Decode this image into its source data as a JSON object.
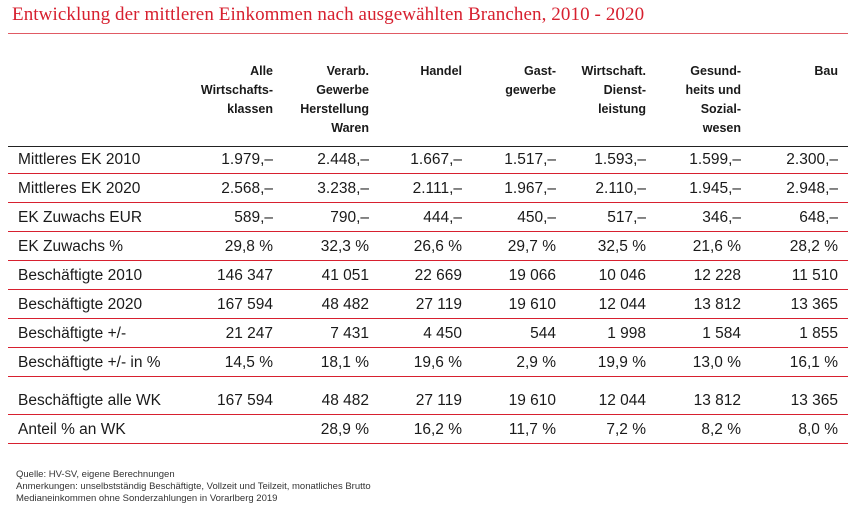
{
  "title": "Entwicklung der mittleren Einkommen nach ausgewählten Branchen, 2010 - 2020",
  "columns": [
    [
      "Alle",
      "Wirtschafts-",
      "klassen"
    ],
    [
      "Verarb.",
      "Gewerbe",
      "Herstellung",
      "Waren"
    ],
    [
      "Handel"
    ],
    [
      "Gast-",
      "gewerbe"
    ],
    [
      "Wirtschaft.",
      "Dienst-",
      "leistung"
    ],
    [
      "Gesund-",
      "heits und",
      "Sozial-",
      "wesen"
    ],
    [
      "Bau"
    ]
  ],
  "rows": [
    {
      "label": "Mittleres EK 2010",
      "values": [
        "1.979,–",
        "2.448,–",
        "1.667,–",
        "1.517,–",
        "1.593,–",
        "1.599,–",
        "2.300,–"
      ]
    },
    {
      "label": "Mittleres EK 2020",
      "values": [
        "2.568,–",
        "3.238,–",
        "2.111,–",
        "1.967,–",
        "2.110,–",
        "1.945,–",
        "2.948,–"
      ]
    },
    {
      "label": "EK Zuwachs EUR",
      "values": [
        "589,–",
        "790,–",
        "444,–",
        "450,–",
        "517,–",
        "346,–",
        "648,–"
      ]
    },
    {
      "label": "EK Zuwachs %",
      "values": [
        "29,8 %",
        "32,3 %",
        "26,6 %",
        "29,7 %",
        "32,5 %",
        "21,6 %",
        "28,2 %"
      ]
    },
    {
      "label": "Beschäftigte 2010",
      "values": [
        "146 347",
        "41 051",
        "22 669",
        "19 066",
        "10 046",
        "12 228",
        "11 510"
      ]
    },
    {
      "label": "Beschäftigte 2020",
      "values": [
        "167 594",
        "48 482",
        "27 119",
        "19 610",
        "12 044",
        "13 812",
        "13 365"
      ]
    },
    {
      "label": "Beschäftigte +/-",
      "values": [
        "21 247",
        "7 431",
        "4 450",
        "544",
        "1 998",
        "1 584",
        "1 855"
      ]
    },
    {
      "label": "Beschäftigte +/- in %",
      "values": [
        "14,5 %",
        "18,1 %",
        "19,6 %",
        "2,9 %",
        "19,9 %",
        "13,0 %",
        "16,1 %"
      ]
    }
  ],
  "rows2": [
    {
      "label": "Beschäftigte alle WK",
      "values": [
        "167 594",
        "48 482",
        "27 119",
        "19 610",
        "12 044",
        "13 812",
        "13 365"
      ]
    },
    {
      "label": "Anteil % an WK",
      "values": [
        "",
        "28,9 %",
        "16,2 %",
        "11,7 %",
        "7,2 %",
        "8,2 %",
        "8,0 %"
      ]
    }
  ],
  "notes": [
    "Quelle: HV-SV, eigene Berechnungen",
    "Anmerkungen: unselbstständig Beschäftigte, Vollzeit und Teilzeit, monatliches Brutto",
    "Medianeinkommen ohne Sonderzahlungen in Vorarlberg 2019"
  ]
}
